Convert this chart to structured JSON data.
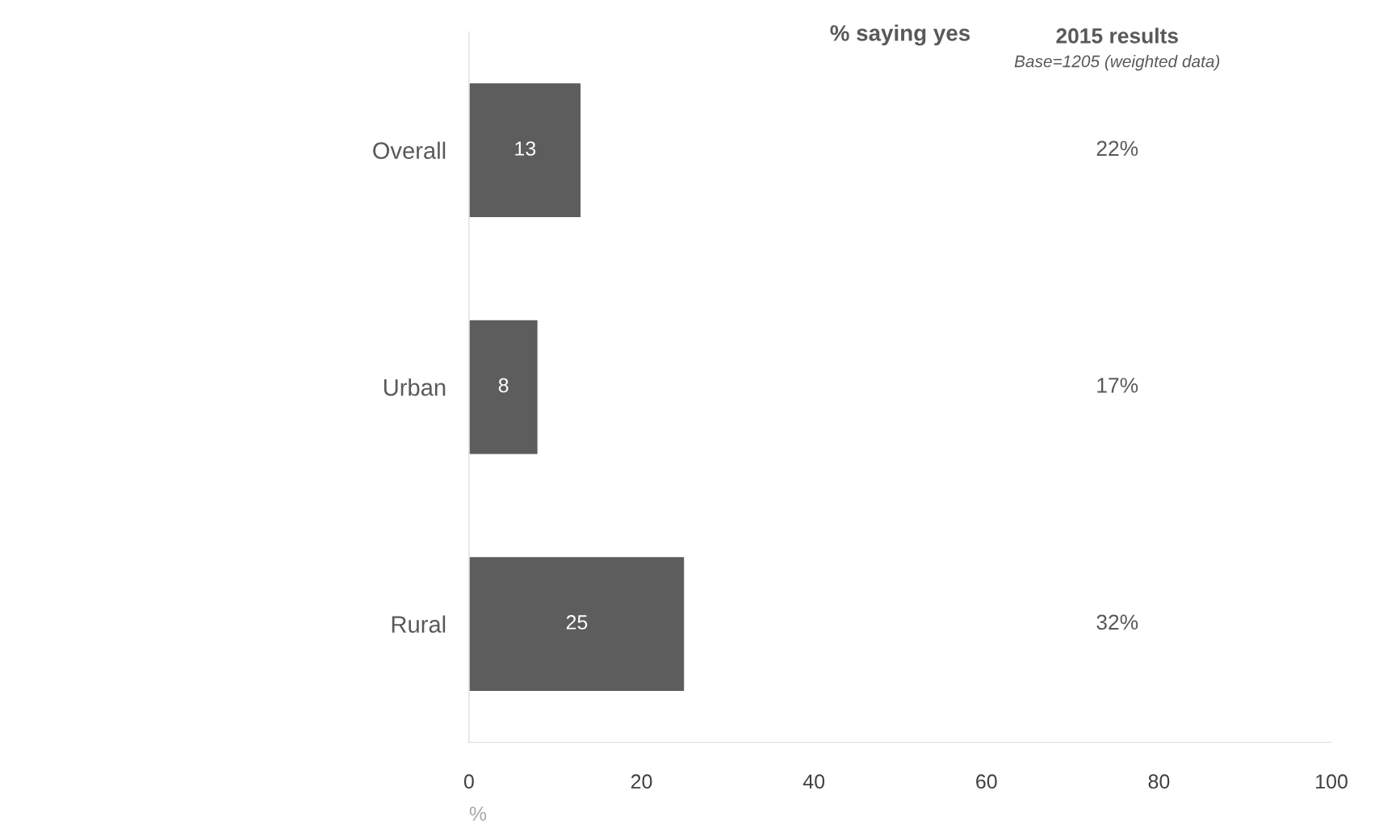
{
  "chart_data": {
    "type": "bar",
    "orientation": "horizontal",
    "title": "% saying yes",
    "xlabel": "%",
    "categories": [
      "Overall",
      "Urban",
      "Rural"
    ],
    "values": [
      13,
      8,
      25
    ],
    "color": "#5d5d5d",
    "data_labels": true,
    "xlim": [
      0,
      100
    ],
    "xticks": [
      0,
      20,
      40,
      60,
      80,
      100
    ],
    "grid": false,
    "legend": false,
    "annotations": [
      "2015 results",
      "Base=1205 (weighted data)",
      "22%",
      "17%",
      "32%"
    ]
  }
}
